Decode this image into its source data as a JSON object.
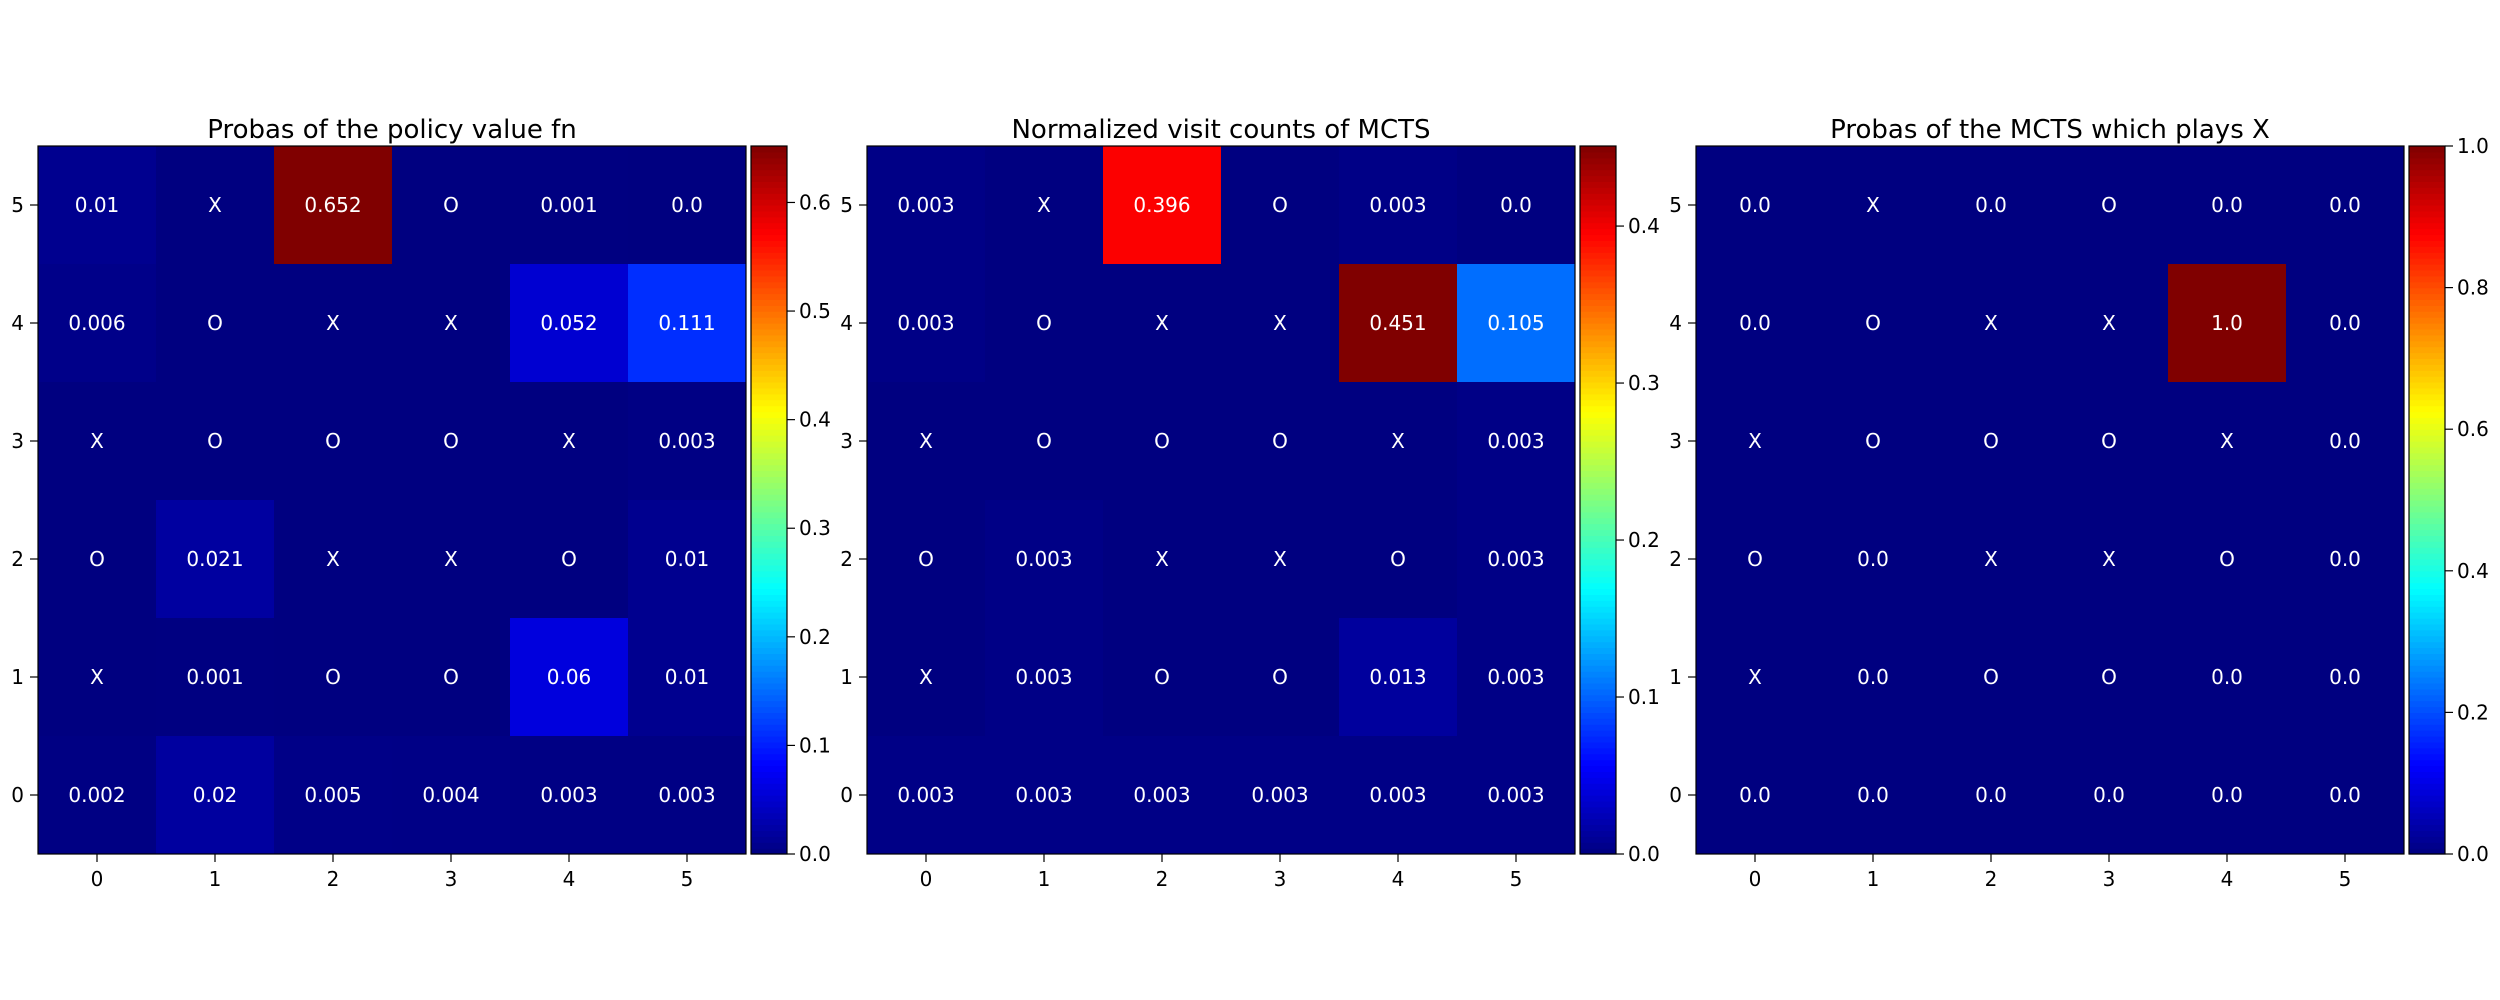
{
  "chart_data": [
    {
      "type": "heatmap",
      "title": "Probas of the policy value fn",
      "xlabel": "",
      "ylabel": "",
      "x_ticks": [
        "0",
        "1",
        "2",
        "3",
        "4",
        "5"
      ],
      "y_ticks": [
        "5",
        "4",
        "3",
        "2",
        "1",
        "0"
      ],
      "colormap": "jet",
      "vmin": 0.0,
      "vmax": 0.652,
      "colorbar_ticks": [
        "0.0",
        "0.1",
        "0.2",
        "0.3",
        "0.4",
        "0.5",
        "0.6"
      ],
      "grid": false,
      "rows": [
        [
          "0.01",
          "X",
          "0.652",
          "O",
          "0.001",
          "0.0"
        ],
        [
          "0.006",
          "O",
          "X",
          "X",
          "0.052",
          "0.111"
        ],
        [
          "X",
          "O",
          "O",
          "O",
          "X",
          "0.003"
        ],
        [
          "O",
          "0.021",
          "X",
          "X",
          "O",
          "0.01"
        ],
        [
          "X",
          "0.001",
          "O",
          "O",
          "0.06",
          "0.01"
        ],
        [
          "0.002",
          "0.02",
          "0.005",
          "0.004",
          "0.003",
          "0.003"
        ]
      ]
    },
    {
      "type": "heatmap",
      "title": "Normalized visit counts of MCTS",
      "xlabel": "",
      "ylabel": "",
      "x_ticks": [
        "0",
        "1",
        "2",
        "3",
        "4",
        "5"
      ],
      "y_ticks": [
        "5",
        "4",
        "3",
        "2",
        "1",
        "0"
      ],
      "colormap": "jet",
      "vmin": 0.0,
      "vmax": 0.451,
      "colorbar_ticks": [
        "0.0",
        "0.1",
        "0.2",
        "0.3",
        "0.4"
      ],
      "grid": false,
      "rows": [
        [
          "0.003",
          "X",
          "0.396",
          "O",
          "0.003",
          "0.0"
        ],
        [
          "0.003",
          "O",
          "X",
          "X",
          "0.451",
          "0.105"
        ],
        [
          "X",
          "O",
          "O",
          "O",
          "X",
          "0.003"
        ],
        [
          "O",
          "0.003",
          "X",
          "X",
          "O",
          "0.003"
        ],
        [
          "X",
          "0.003",
          "O",
          "O",
          "0.013",
          "0.003"
        ],
        [
          "0.003",
          "0.003",
          "0.003",
          "0.003",
          "0.003",
          "0.003"
        ]
      ]
    },
    {
      "type": "heatmap",
      "title": "Probas of the MCTS which plays X",
      "xlabel": "",
      "ylabel": "",
      "x_ticks": [
        "0",
        "1",
        "2",
        "3",
        "4",
        "5"
      ],
      "y_ticks": [
        "5",
        "4",
        "3",
        "2",
        "1",
        "0"
      ],
      "colormap": "jet",
      "vmin": 0.0,
      "vmax": 1.0,
      "colorbar_ticks": [
        "0.0",
        "0.2",
        "0.4",
        "0.6",
        "0.8",
        "1.0"
      ],
      "grid": false,
      "rows": [
        [
          "0.0",
          "X",
          "0.0",
          "O",
          "0.0",
          "0.0"
        ],
        [
          "0.0",
          "O",
          "X",
          "X",
          "1.0",
          "0.0"
        ],
        [
          "X",
          "O",
          "O",
          "O",
          "X",
          "0.0"
        ],
        [
          "O",
          "0.0",
          "X",
          "X",
          "O",
          "0.0"
        ],
        [
          "X",
          "0.0",
          "O",
          "O",
          "0.0",
          "0.0"
        ],
        [
          "0.0",
          "0.0",
          "0.0",
          "0.0",
          "0.0",
          "0.0"
        ]
      ]
    }
  ]
}
